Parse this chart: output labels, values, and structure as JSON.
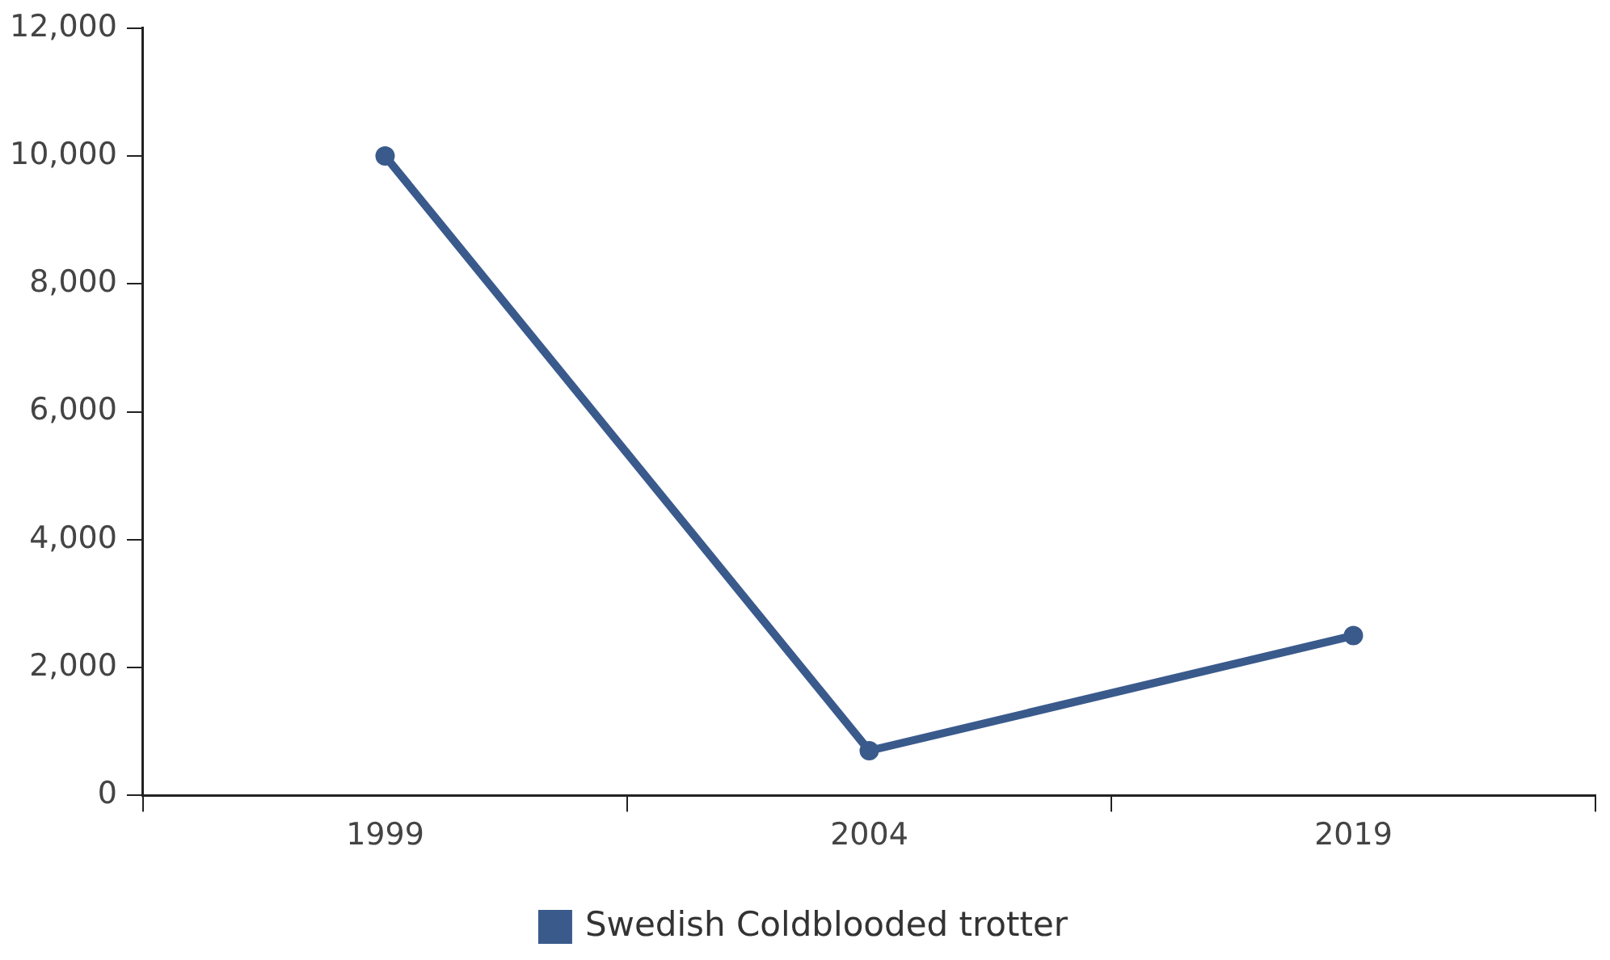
{
  "chart_data": {
    "type": "line",
    "categories": [
      "1999",
      "2004",
      "2019"
    ],
    "series": [
      {
        "name": "Swedish Coldblooded trotter",
        "color": "#3a5a8c",
        "values": [
          10000,
          700,
          2500
        ]
      }
    ],
    "ylim": [
      0,
      12000
    ],
    "yticks": [
      {
        "value": 0,
        "label": "0"
      },
      {
        "value": 2000,
        "label": "2,000"
      },
      {
        "value": 4000,
        "label": "4,000"
      },
      {
        "value": 6000,
        "label": "6,000"
      },
      {
        "value": 8000,
        "label": "8,000"
      },
      {
        "value": 10000,
        "label": "10,000"
      },
      {
        "value": 12000,
        "label": "12,000"
      }
    ],
    "grid": false,
    "legend": "bottom",
    "marker": "circle",
    "line_style": "solid"
  }
}
